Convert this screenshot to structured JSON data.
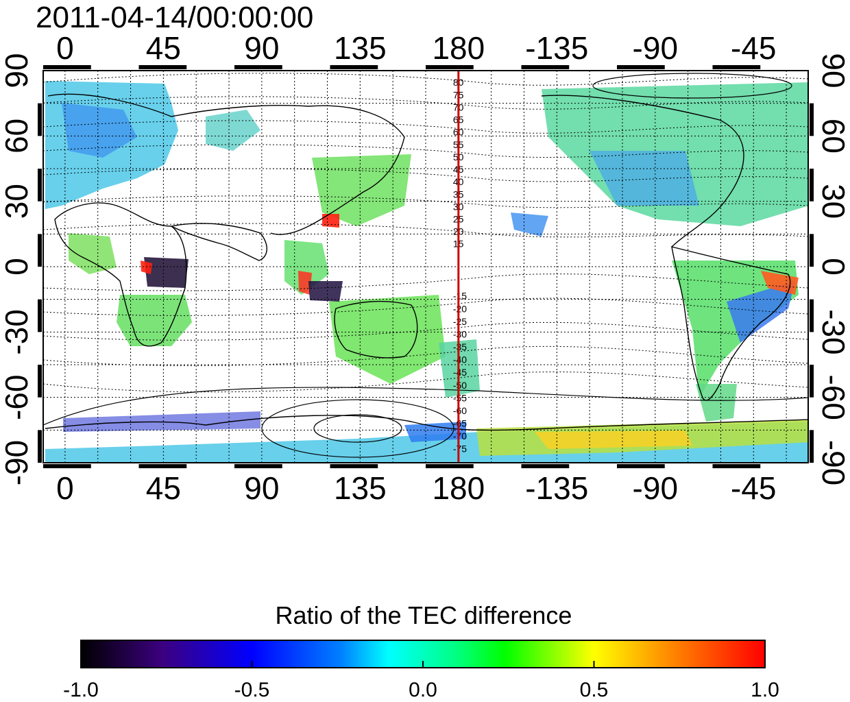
{
  "map": {
    "timestamp": "2011-04-14/00:00:00",
    "lon_tick_labels": [
      "0",
      "45",
      "90",
      "135",
      "180",
      "-135",
      "-90",
      "-45"
    ],
    "lat_tick_labels": [
      "90",
      "60",
      "30",
      "0",
      "-30",
      "-60",
      "-90"
    ],
    "lon_ticks_deg": [
      0,
      45,
      90,
      135,
      180,
      225,
      270,
      315
    ],
    "lat_ticks_deg": [
      90,
      60,
      30,
      0,
      -30,
      -60,
      -90
    ],
    "lon_range_deg": [
      -10,
      340
    ],
    "lat_range_deg": [
      -90,
      90
    ],
    "reference_meridian_deg": 180,
    "reference_meridian_color": "#cc0000",
    "contour_labels": [
      "80",
      "75",
      "70",
      "65",
      "60",
      "55",
      "50",
      "45",
      "40",
      "35",
      "30",
      "25",
      "20",
      "15",
      "-15",
      "-20",
      "-25",
      "-30",
      "-35",
      "-40",
      "-45",
      "-50",
      "-55",
      "-60",
      "-65",
      "-70",
      "-75"
    ],
    "grid": "dotted"
  },
  "colorbar": {
    "title": "Ratio of the TEC difference",
    "tick_labels": [
      "-1.0",
      "-0.5",
      "0.0",
      "0.5",
      "1.0"
    ],
    "range": [
      -1.0,
      1.0
    ],
    "colors": [
      "#000000",
      "#3c0080",
      "#0000ff",
      "#00ffff",
      "#00ff00",
      "#ffff00",
      "#ff0000"
    ]
  }
}
